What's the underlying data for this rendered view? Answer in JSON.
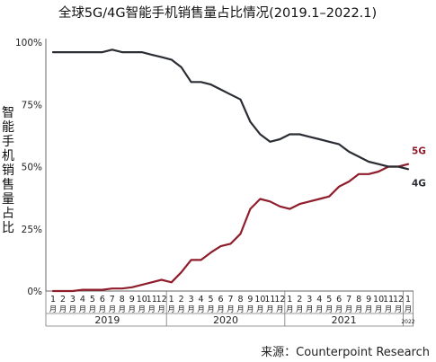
{
  "chart_data": {
    "type": "line",
    "title": "全球5G/4G智能手机销售量占比情况(2019.1–2022.1)",
    "ylabel": "智能手机销售量占比",
    "ylim": [
      0,
      100
    ],
    "yticks": [
      "0%",
      "25%",
      "50%",
      "75%",
      "100%"
    ],
    "x_month_labels": [
      "1",
      "2",
      "3",
      "4",
      "5",
      "6",
      "7",
      "8",
      "9",
      "10",
      "11",
      "12",
      "1",
      "2",
      "3",
      "4",
      "5",
      "6",
      "7",
      "8",
      "9",
      "10",
      "11",
      "12",
      "1",
      "2",
      "3",
      "4",
      "5",
      "6",
      "7",
      "8",
      "9",
      "10",
      "11",
      "12",
      "1"
    ],
    "x_unit_label": "月",
    "year_groups": [
      {
        "label": "2019",
        "count": 12
      },
      {
        "label": "2020",
        "count": 12
      },
      {
        "label": "2021",
        "count": 12
      },
      {
        "label": "2022",
        "count": 1
      }
    ],
    "series": [
      {
        "name": "5G",
        "color": "#8f1d2b",
        "values": [
          0,
          0,
          0,
          0.5,
          0.5,
          0.5,
          1,
          1,
          1.5,
          2.5,
          3.5,
          4.5,
          3.5,
          7.5,
          12.5,
          12.5,
          15.5,
          18,
          19,
          23,
          33,
          37,
          36,
          34,
          33,
          35,
          36,
          37,
          38,
          42,
          44,
          47,
          47,
          48,
          50,
          50,
          51
        ]
      },
      {
        "name": "4G",
        "color": "#2a2d33",
        "values": [
          96,
          96,
          96,
          96,
          96,
          96,
          97,
          96,
          96,
          96,
          95,
          94,
          93,
          90,
          84,
          84,
          83,
          81,
          79,
          77,
          68,
          63,
          60,
          61,
          63,
          63,
          62,
          61,
          60,
          59,
          56,
          54,
          52,
          51,
          50,
          50,
          49
        ]
      }
    ],
    "grid": false,
    "legend": "inline labels at right end"
  },
  "source": "来源：Counterpoint Research"
}
